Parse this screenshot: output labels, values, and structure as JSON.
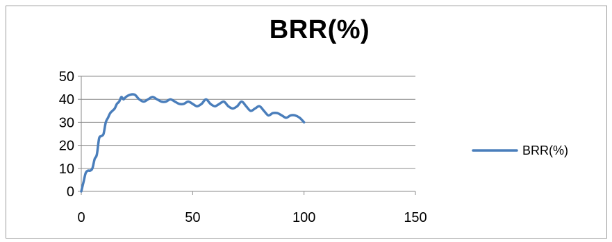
{
  "chart_data": {
    "type": "line",
    "title": "BRR(%)",
    "xlabel": "",
    "ylabel": "",
    "xlim": [
      0,
      150
    ],
    "ylim": [
      0,
      50
    ],
    "x_ticks": [
      0,
      50,
      100,
      150
    ],
    "y_ticks": [
      0,
      10,
      20,
      30,
      40,
      50
    ],
    "grid": "horizontal",
    "legend_position": "right",
    "series": [
      {
        "name": "BRR(%)",
        "color": "#4a7ebb",
        "x": [
          0,
          1,
          2,
          3,
          4,
          5,
          6,
          7,
          8,
          9,
          10,
          11,
          12,
          13,
          14,
          15,
          16,
          17,
          18,
          19,
          20,
          22,
          24,
          26,
          28,
          30,
          32,
          34,
          36,
          38,
          40,
          42,
          44,
          46,
          48,
          50,
          52,
          54,
          56,
          58,
          60,
          62,
          64,
          66,
          68,
          70,
          72,
          74,
          76,
          78,
          80,
          82,
          84,
          86,
          88,
          90,
          92,
          94,
          96,
          98,
          100
        ],
        "y": [
          0,
          4,
          8,
          9,
          9,
          10,
          14,
          16,
          23,
          24,
          25,
          30,
          32,
          34,
          35,
          36,
          38,
          39,
          41,
          40,
          41,
          42,
          42,
          40,
          39,
          40,
          41,
          40,
          39,
          39,
          40,
          39,
          38,
          38,
          39,
          38,
          37,
          38,
          40,
          38,
          37,
          38,
          39,
          37,
          36,
          37,
          39,
          37,
          35,
          36,
          37,
          35,
          33,
          34,
          34,
          33,
          32,
          33,
          33,
          32,
          30
        ]
      }
    ]
  }
}
